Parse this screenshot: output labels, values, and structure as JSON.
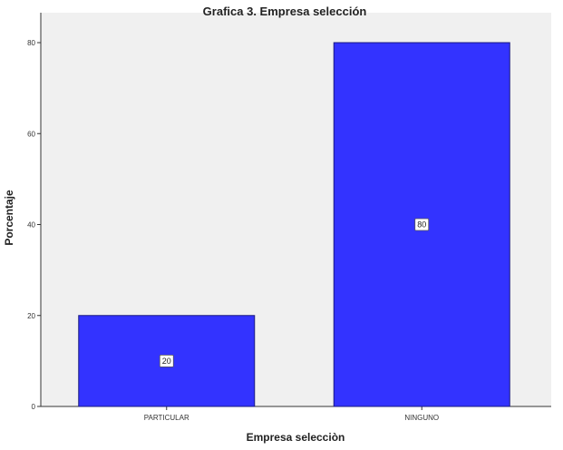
{
  "chart_data": {
    "type": "bar",
    "title": "Grafica 3. Empresa selección",
    "xlabel": "Empresa selecciòn",
    "ylabel": "Porcentaje",
    "categories": [
      "PARTICULAR",
      "NINGUNO"
    ],
    "values": [
      20,
      80
    ],
    "data_labels": [
      "20",
      "80"
    ],
    "ylim": [
      0,
      80
    ],
    "yticks": [
      0,
      20,
      40,
      60,
      80
    ],
    "grid": false,
    "legend": "none",
    "colors": {
      "bar_fill": "#3333ff",
      "bar_stroke": "#1a1a80",
      "plot_background": "#f0f0f0",
      "axis": "#333333"
    }
  }
}
